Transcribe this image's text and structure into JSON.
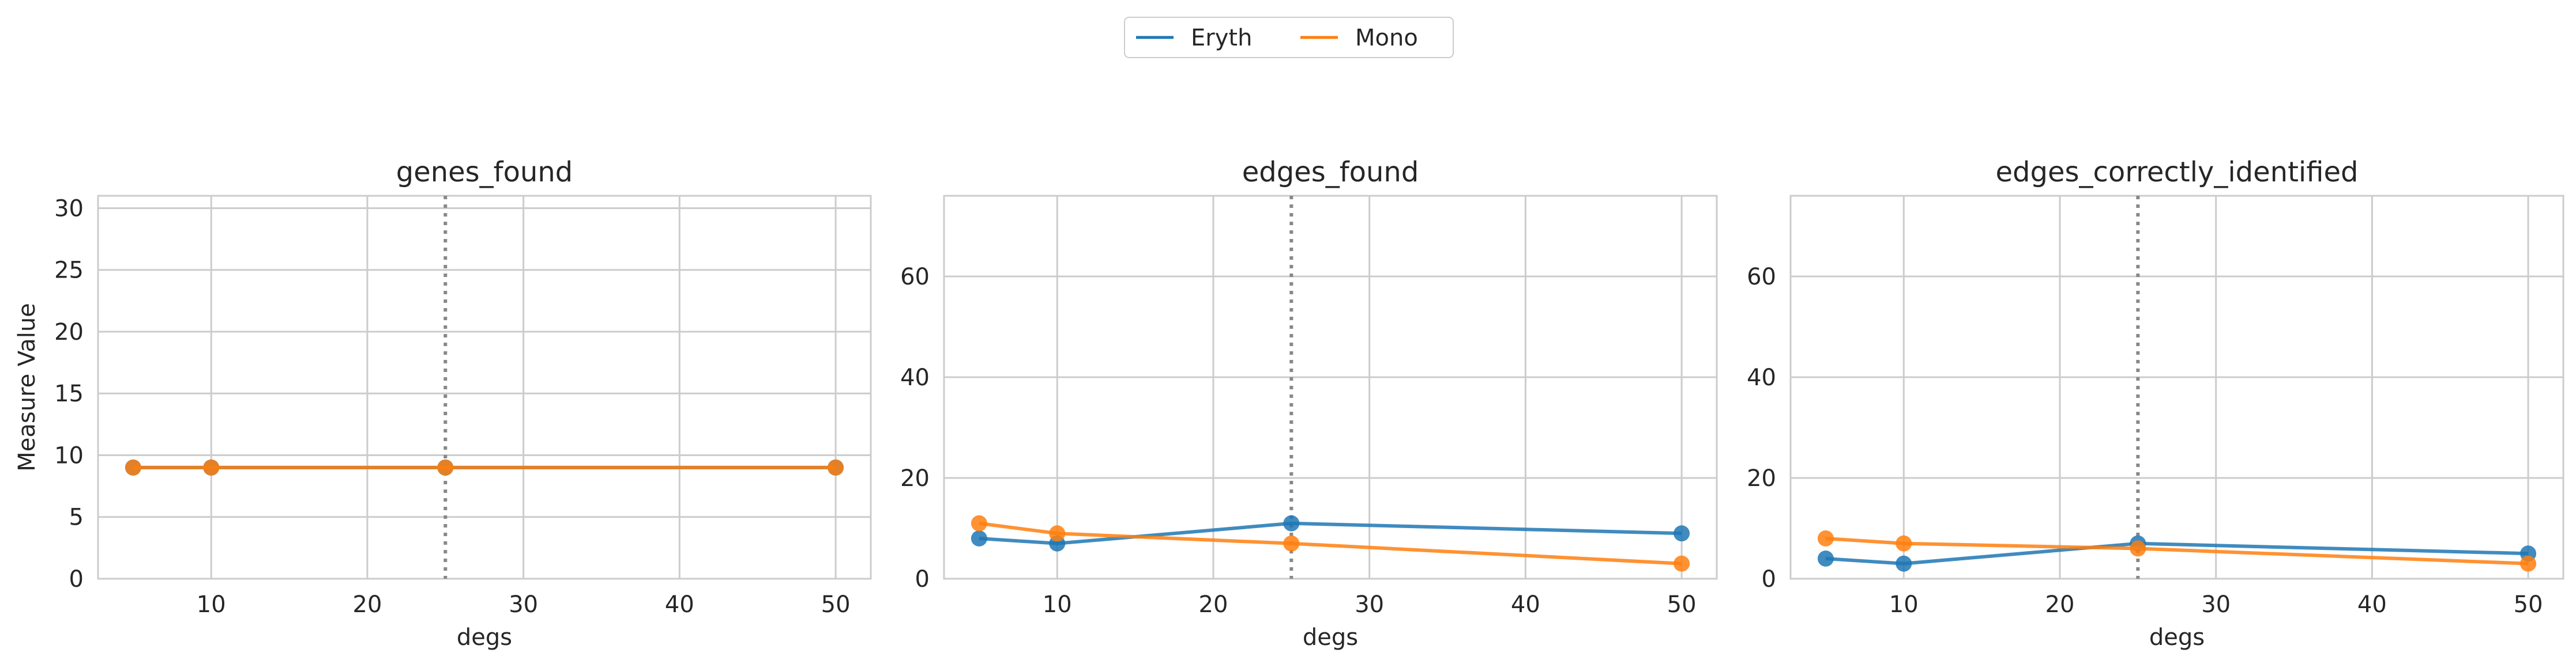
{
  "legend": {
    "entries": [
      {
        "name": "Eryth",
        "color": "#1f77b4"
      },
      {
        "name": "Mono",
        "color": "#ff7f0e"
      }
    ]
  },
  "chart_data": [
    {
      "type": "line",
      "title": "genes_found",
      "xlabel": "degs",
      "ylabel": "Measure Value",
      "x": [
        5,
        10,
        25,
        50
      ],
      "xlim": [
        2.75,
        52.25
      ],
      "ylim": [
        0,
        31
      ],
      "xticks": [
        10,
        20,
        30,
        40,
        50
      ],
      "yticks": [
        0,
        5,
        10,
        15,
        20,
        25,
        30
      ],
      "vline": 25,
      "grid": true,
      "series": [
        {
          "name": "Eryth",
          "values": [
            9,
            9,
            9,
            9
          ]
        },
        {
          "name": "Mono",
          "values": [
            9,
            9,
            9,
            9
          ]
        }
      ]
    },
    {
      "type": "line",
      "title": "edges_found",
      "xlabel": "degs",
      "ylabel": "",
      "x": [
        5,
        10,
        25,
        50
      ],
      "xlim": [
        2.75,
        52.25
      ],
      "ylim": [
        0,
        76
      ],
      "xticks": [
        10,
        20,
        30,
        40,
        50
      ],
      "yticks": [
        0,
        20,
        40,
        60
      ],
      "vline": 25,
      "grid": true,
      "series": [
        {
          "name": "Eryth",
          "values": [
            8,
            7,
            11,
            9
          ]
        },
        {
          "name": "Mono",
          "values": [
            11,
            9,
            7,
            3
          ]
        }
      ]
    },
    {
      "type": "line",
      "title": "edges_correctly_identified",
      "xlabel": "degs",
      "ylabel": "",
      "x": [
        5,
        10,
        25,
        50
      ],
      "xlim": [
        2.75,
        52.25
      ],
      "ylim": [
        0,
        76
      ],
      "xticks": [
        10,
        20,
        30,
        40,
        50
      ],
      "yticks": [
        0,
        20,
        40,
        60
      ],
      "vline": 25,
      "grid": true,
      "series": [
        {
          "name": "Eryth",
          "values": [
            4,
            3,
            7,
            5
          ]
        },
        {
          "name": "Mono",
          "values": [
            8,
            7,
            6,
            3
          ]
        }
      ]
    }
  ]
}
